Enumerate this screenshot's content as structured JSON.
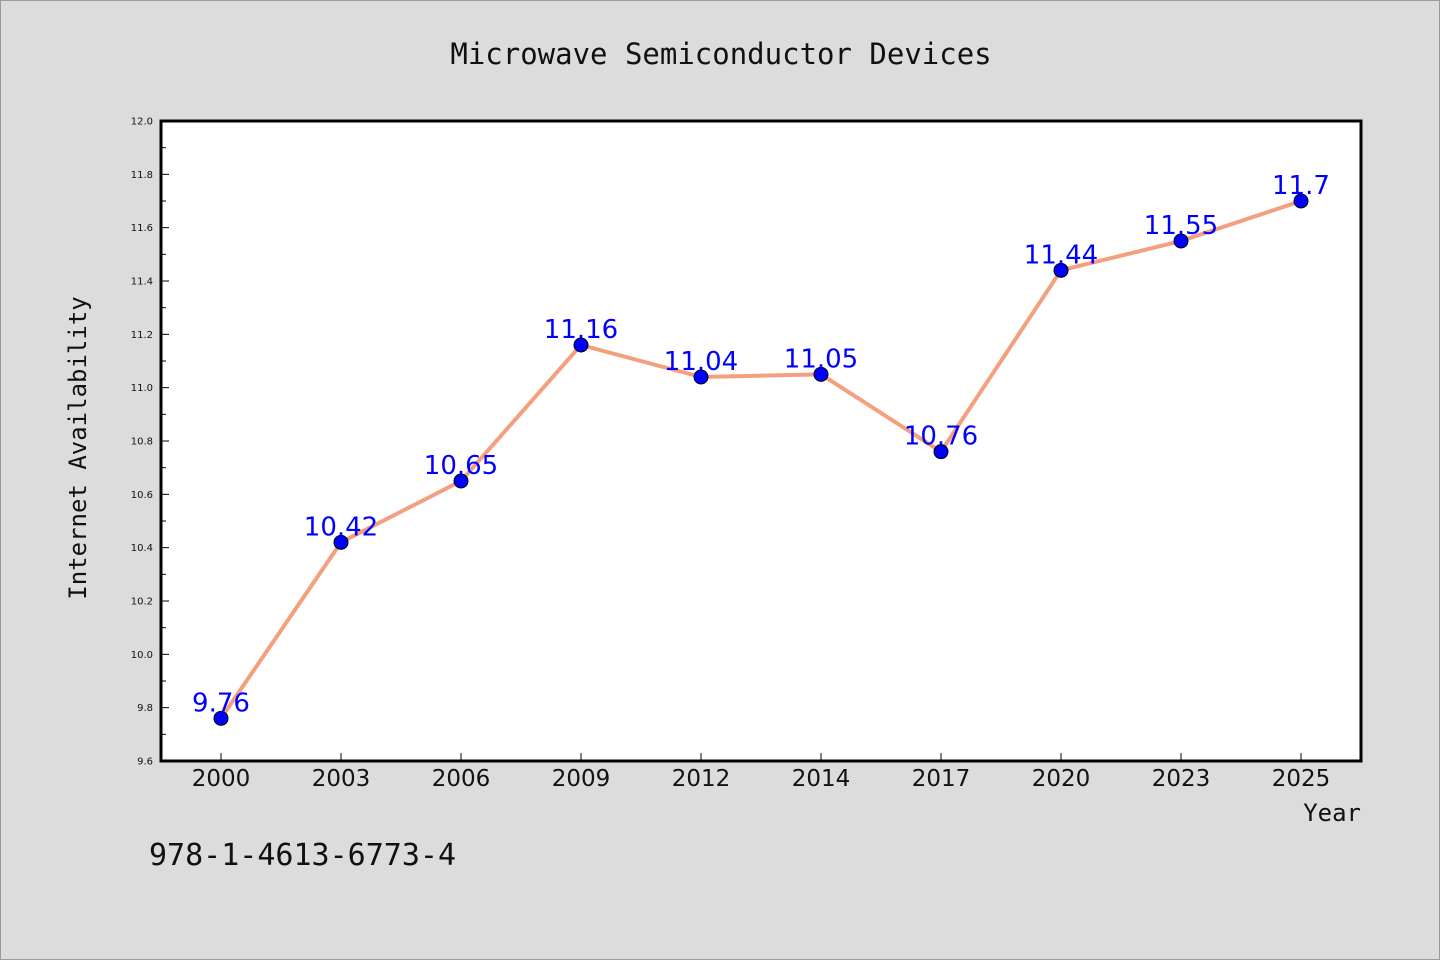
{
  "chart_data": {
    "type": "line",
    "title": "Microwave Semiconductor Devices",
    "xlabel": "Year",
    "ylabel": "Internet Availability",
    "categories": [
      "2000",
      "2003",
      "2006",
      "2009",
      "2012",
      "2014",
      "2017",
      "2020",
      "2023",
      "2025"
    ],
    "series": [
      {
        "values": [
          9.76,
          10.42,
          10.65,
          11.16,
          11.04,
          11.05,
          10.76,
          11.44,
          11.55,
          11.7
        ]
      }
    ],
    "data_labels": [
      "9.76",
      "10.42",
      "10.65",
      "11.16",
      "11.04",
      "11.05",
      "10.76",
      "11.44",
      "11.55",
      "11.7"
    ],
    "ylim": [
      9.6,
      12.0
    ],
    "yticks": [
      "9.6",
      "9.8",
      "10.0",
      "10.2",
      "10.4",
      "10.6",
      "10.8",
      "11.0",
      "11.2",
      "11.4",
      "11.6",
      "11.8",
      "12.0"
    ],
    "grid": false,
    "legend": "none"
  },
  "footer": {
    "isbn": "978-1-4613-6773-4"
  },
  "colors": {
    "background": "#dcdcdc",
    "plot_area": "#ffffff",
    "line": "#f4a07e",
    "marker": "#0000ff",
    "data_label": "#0000ff"
  }
}
